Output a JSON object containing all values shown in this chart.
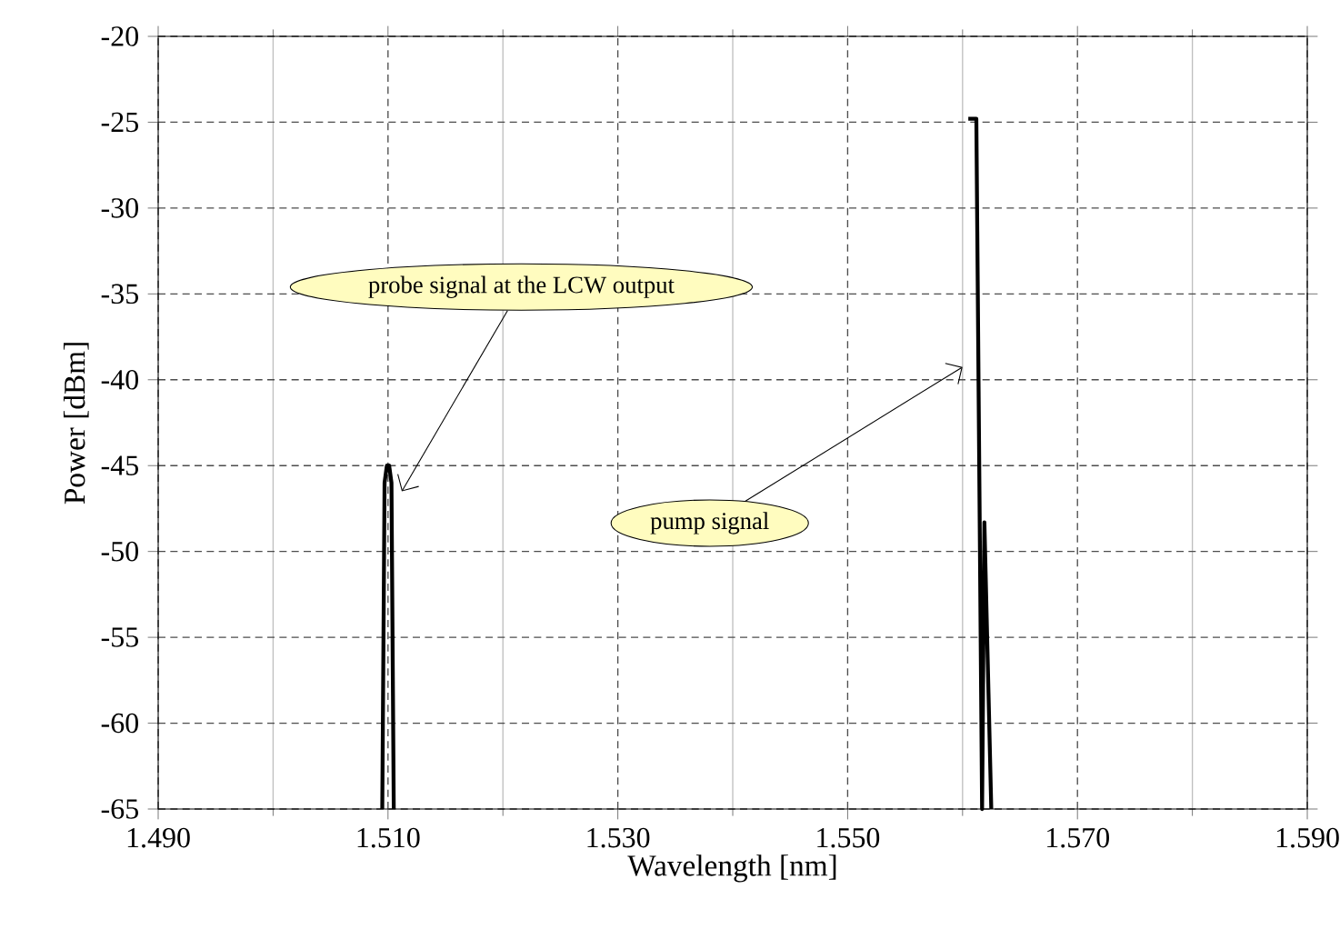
{
  "chart_data": {
    "type": "line",
    "xlabel": "Wavelength [nm]",
    "ylabel": "Power [dBm]",
    "x": [
      1.5095,
      1.5097,
      1.5099,
      1.5101,
      1.5103,
      1.5105,
      1.5598,
      1.5605,
      1.5612,
      1.5617,
      1.5619,
      1.5625
    ],
    "series": [
      {
        "color": "#000000",
        "values": [
          -65,
          -46,
          -45,
          -45,
          -46,
          -65,
          null,
          -24.8,
          -24.8,
          -65,
          -48.3,
          -65
        ]
      }
    ],
    "xlim": [
      1.49,
      1.59
    ],
    "xticks": [
      {
        "value": 1.49,
        "label": "1.490"
      },
      {
        "value": 1.51,
        "label": "1.510"
      },
      {
        "value": 1.53,
        "label": "1.530"
      },
      {
        "value": 1.55,
        "label": "1.550"
      },
      {
        "value": 1.57,
        "label": "1.570"
      },
      {
        "value": 1.59,
        "label": "1.590"
      }
    ],
    "ylim": [
      -65,
      -20
    ],
    "yticks": [
      -65,
      -60,
      -55,
      -50,
      -45,
      -40,
      -35,
      -30,
      -25,
      -20
    ],
    "grid": true,
    "marker": "none",
    "line_style": "solid",
    "annotations": [
      {
        "text": "probe signal at the LCW output",
        "x": 1.5112,
        "y": -46.5
      },
      "pump signal"
    ]
  }
}
